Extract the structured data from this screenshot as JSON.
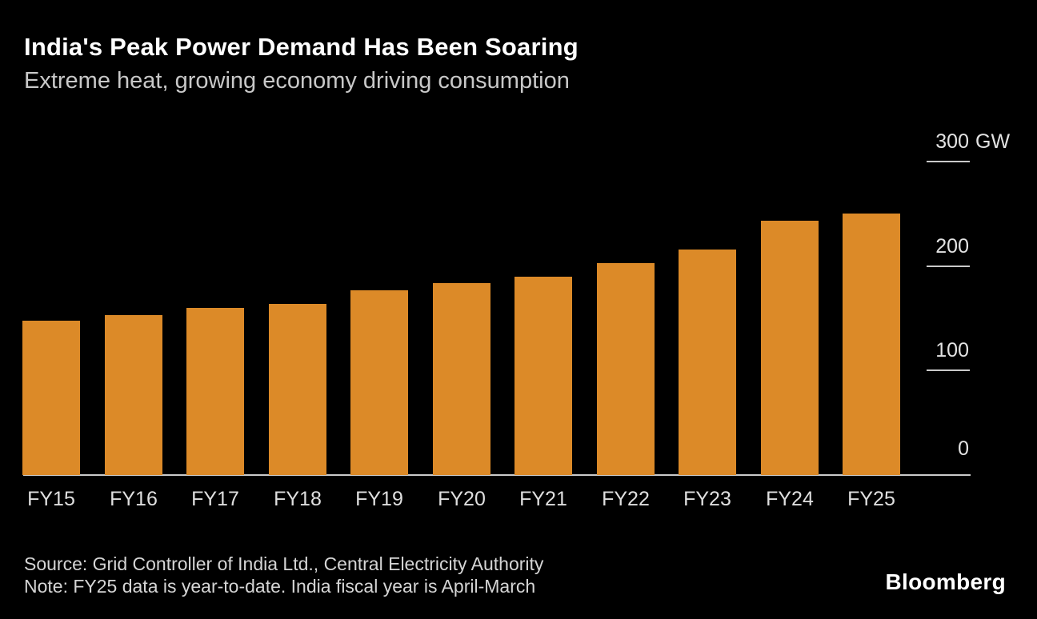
{
  "header": {
    "title": "India's Peak Power Demand Has Been Soaring",
    "subtitle": "Extreme heat, growing economy driving consumption"
  },
  "chart_data": {
    "type": "bar",
    "title": "India's Peak Power Demand Has Been Soaring",
    "subtitle": "Extreme heat, growing economy driving consumption",
    "categories": [
      "FY15",
      "FY16",
      "FY17",
      "FY18",
      "FY19",
      "FY20",
      "FY21",
      "FY22",
      "FY23",
      "FY24",
      "FY25"
    ],
    "values": [
      148,
      153,
      160,
      164,
      177,
      184,
      190,
      203,
      216,
      243,
      250
    ],
    "unit": "GW",
    "xlabel": "",
    "ylabel": "",
    "ylim": [
      0,
      300
    ],
    "yticks": [
      {
        "value": 300,
        "label": "300",
        "suffix": "GW",
        "show_tick": true
      },
      {
        "value": 200,
        "label": "200",
        "suffix": "",
        "show_tick": true
      },
      {
        "value": 100,
        "label": "100",
        "suffix": "",
        "show_tick": true
      },
      {
        "value": 0,
        "label": "0",
        "suffix": "",
        "show_tick": false
      }
    ],
    "grid": false,
    "legend": false,
    "bar_color": "#dc8a28",
    "axis_color": "#cbcbcb",
    "background_color": "#000000"
  },
  "footer": {
    "source": "Source: Grid Controller of India Ltd., Central Electricity Authority",
    "note": "Note: FY25 data is year-to-date. India fiscal year is April-March",
    "logo": "Bloomberg"
  }
}
